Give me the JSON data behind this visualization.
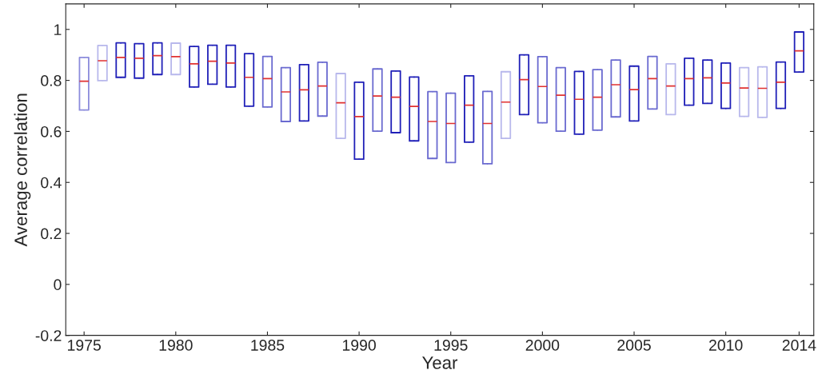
{
  "chart_data": {
    "type": "box",
    "xlabel": "Year",
    "ylabel": "Average correlation",
    "x": [
      1975,
      1976,
      1977,
      1978,
      1979,
      1980,
      1981,
      1982,
      1983,
      1984,
      1985,
      1986,
      1987,
      1988,
      1989,
      1990,
      1991,
      1992,
      1993,
      1994,
      1995,
      1996,
      1997,
      1998,
      1999,
      2000,
      2001,
      2002,
      2003,
      2004,
      2005,
      2006,
      2007,
      2008,
      2009,
      2010,
      2011,
      2012,
      2013,
      2014
    ],
    "xlim": [
      1974,
      2014.8
    ],
    "xticks": [
      1975,
      1980,
      1985,
      1990,
      1995,
      2000,
      2005,
      2010,
      2014
    ],
    "ylim": [
      -0.2,
      1.1
    ],
    "yticks": [
      -0.2,
      0,
      0.2,
      0.4,
      0.6,
      0.8,
      1
    ],
    "grid": false,
    "colors": [
      "#8c8cdc",
      "#b8b8ec",
      "#2020b8",
      "#2020b8",
      "#2020b8",
      "#b8b8ec",
      "#2020b8",
      "#2020b8",
      "#2020b8",
      "#2020b8",
      "#6a6ad0",
      "#6a6ad0",
      "#2020b8",
      "#6a6ad0",
      "#b8b8ec",
      "#2020b8",
      "#6a6ad0",
      "#2020b8",
      "#2020b8",
      "#6a6ad0",
      "#6a6ad0",
      "#2020b8",
      "#6a6ad0",
      "#b8b8ec",
      "#2020b8",
      "#6a6ad0",
      "#6a6ad0",
      "#2020b8",
      "#6a6ad0",
      "#6a6ad0",
      "#2020b8",
      "#6a6ad0",
      "#b8b8ec",
      "#2020b8",
      "#2020b8",
      "#2020b8",
      "#b8b8ec",
      "#b8b8ec",
      "#2020b8",
      "#2020b8"
    ],
    "boxes": [
      {
        "low": 0.684,
        "q1": 0.684,
        "median": 0.797,
        "q3": 0.89,
        "high": 0.89
      },
      {
        "low": 0.799,
        "q1": 0.799,
        "median": 0.877,
        "q3": 0.937,
        "high": 0.937
      },
      {
        "low": 0.812,
        "q1": 0.812,
        "median": 0.89,
        "q3": 0.947,
        "high": 0.947
      },
      {
        "low": 0.809,
        "q1": 0.809,
        "median": 0.887,
        "q3": 0.944,
        "high": 0.944
      },
      {
        "low": 0.823,
        "q1": 0.823,
        "median": 0.897,
        "q3": 0.947,
        "high": 0.947
      },
      {
        "low": 0.823,
        "q1": 0.823,
        "median": 0.893,
        "q3": 0.946,
        "high": 0.946
      },
      {
        "low": 0.774,
        "q1": 0.774,
        "median": 0.865,
        "q3": 0.933,
        "high": 0.933
      },
      {
        "low": 0.785,
        "q1": 0.785,
        "median": 0.875,
        "q3": 0.938,
        "high": 0.938
      },
      {
        "low": 0.774,
        "q1": 0.774,
        "median": 0.868,
        "q3": 0.938,
        "high": 0.938
      },
      {
        "low": 0.699,
        "q1": 0.699,
        "median": 0.812,
        "q3": 0.905,
        "high": 0.905
      },
      {
        "low": 0.696,
        "q1": 0.696,
        "median": 0.807,
        "q3": 0.894,
        "high": 0.894
      },
      {
        "low": 0.639,
        "q1": 0.639,
        "median": 0.755,
        "q3": 0.85,
        "high": 0.85
      },
      {
        "low": 0.641,
        "q1": 0.641,
        "median": 0.763,
        "q3": 0.862,
        "high": 0.862
      },
      {
        "low": 0.66,
        "q1": 0.66,
        "median": 0.778,
        "q3": 0.871,
        "high": 0.871
      },
      {
        "low": 0.573,
        "q1": 0.573,
        "median": 0.712,
        "q3": 0.827,
        "high": 0.827
      },
      {
        "low": 0.491,
        "q1": 0.491,
        "median": 0.658,
        "q3": 0.793,
        "high": 0.793
      },
      {
        "low": 0.601,
        "q1": 0.601,
        "median": 0.739,
        "q3": 0.845,
        "high": 0.845
      },
      {
        "low": 0.595,
        "q1": 0.595,
        "median": 0.734,
        "q3": 0.837,
        "high": 0.837
      },
      {
        "low": 0.563,
        "q1": 0.563,
        "median": 0.698,
        "q3": 0.813,
        "high": 0.813
      },
      {
        "low": 0.494,
        "q1": 0.494,
        "median": 0.639,
        "q3": 0.756,
        "high": 0.756
      },
      {
        "low": 0.478,
        "q1": 0.478,
        "median": 0.631,
        "q3": 0.75,
        "high": 0.75
      },
      {
        "low": 0.558,
        "q1": 0.558,
        "median": 0.703,
        "q3": 0.818,
        "high": 0.818
      },
      {
        "low": 0.473,
        "q1": 0.473,
        "median": 0.631,
        "q3": 0.757,
        "high": 0.757
      },
      {
        "low": 0.573,
        "q1": 0.573,
        "median": 0.715,
        "q3": 0.834,
        "high": 0.834
      },
      {
        "low": 0.666,
        "q1": 0.666,
        "median": 0.803,
        "q3": 0.9,
        "high": 0.9
      },
      {
        "low": 0.634,
        "q1": 0.634,
        "median": 0.776,
        "q3": 0.893,
        "high": 0.893
      },
      {
        "low": 0.601,
        "q1": 0.601,
        "median": 0.742,
        "q3": 0.85,
        "high": 0.85
      },
      {
        "low": 0.589,
        "q1": 0.589,
        "median": 0.726,
        "q3": 0.835,
        "high": 0.835
      },
      {
        "low": 0.605,
        "q1": 0.605,
        "median": 0.734,
        "q3": 0.842,
        "high": 0.842
      },
      {
        "low": 0.657,
        "q1": 0.657,
        "median": 0.783,
        "q3": 0.88,
        "high": 0.88
      },
      {
        "low": 0.641,
        "q1": 0.641,
        "median": 0.764,
        "q3": 0.856,
        "high": 0.856
      },
      {
        "low": 0.688,
        "q1": 0.688,
        "median": 0.807,
        "q3": 0.894,
        "high": 0.894
      },
      {
        "low": 0.666,
        "q1": 0.666,
        "median": 0.778,
        "q3": 0.865,
        "high": 0.865
      },
      {
        "low": 0.703,
        "q1": 0.703,
        "median": 0.807,
        "q3": 0.887,
        "high": 0.887
      },
      {
        "low": 0.71,
        "q1": 0.71,
        "median": 0.81,
        "q3": 0.88,
        "high": 0.88
      },
      {
        "low": 0.69,
        "q1": 0.69,
        "median": 0.79,
        "q3": 0.868,
        "high": 0.868
      },
      {
        "low": 0.659,
        "q1": 0.659,
        "median": 0.77,
        "q3": 0.85,
        "high": 0.85
      },
      {
        "low": 0.655,
        "q1": 0.655,
        "median": 0.769,
        "q3": 0.853,
        "high": 0.853
      },
      {
        "low": 0.69,
        "q1": 0.69,
        "median": 0.793,
        "q3": 0.872,
        "high": 0.872
      },
      {
        "low": 0.833,
        "q1": 0.833,
        "median": 0.916,
        "q3": 0.99,
        "high": 0.99
      }
    ]
  }
}
